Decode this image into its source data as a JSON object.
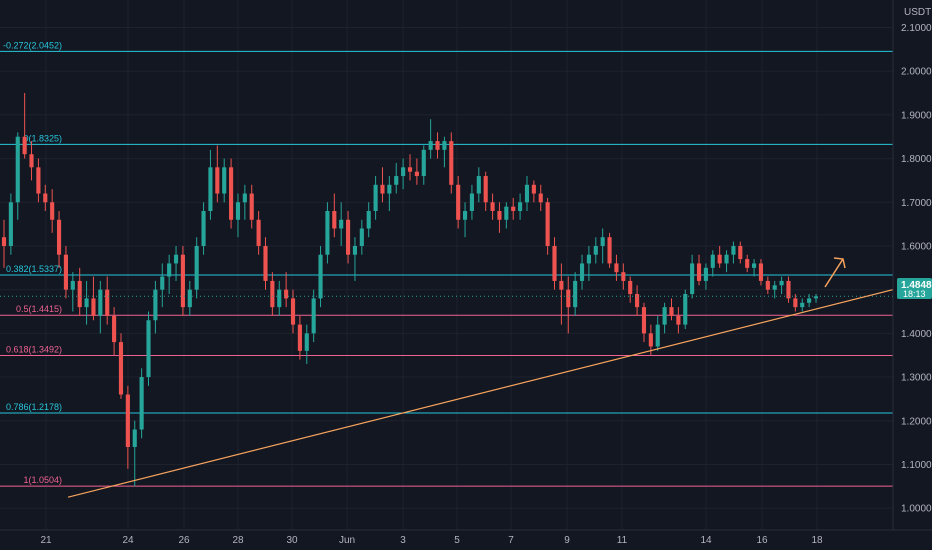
{
  "chart_data": {
    "type": "candlestick",
    "currency": "USDT",
    "y_range": [
      0.95,
      2.14
    ],
    "y_ticks": [
      "2.1000",
      "2.0000",
      "1.9000",
      "1.8000",
      "1.7000",
      "1.6000",
      "1.5000",
      "1.4000",
      "1.3000",
      "1.2000",
      "1.1000",
      "1.0000"
    ],
    "x_ticks": [
      "21",
      "24",
      "26",
      "28",
      "30",
      "Jun",
      "3",
      "5",
      "7",
      "9",
      "11",
      "14",
      "16",
      "18"
    ],
    "last_price": "1.4848",
    "countdown": "18:13",
    "fib_levels": [
      {
        "label": "-0.272(2.0452)",
        "price": 2.0452,
        "color": "#26c6da"
      },
      {
        "label": "0(1.8325)",
        "price": 1.8325,
        "color": "#26c6da"
      },
      {
        "label": "0.382(1.5337)",
        "price": 1.5337,
        "color": "#26c6da"
      },
      {
        "label": "0.5(1.4415)",
        "price": 1.4415,
        "color": "#f06292"
      },
      {
        "label": "0.618(1.3492)",
        "price": 1.3492,
        "color": "#f06292"
      },
      {
        "label": "0.786(1.2178)",
        "price": 1.2178,
        "color": "#26c6da"
      },
      {
        "label": "1(1.0504)",
        "price": 1.0504,
        "color": "#f06292"
      }
    ],
    "trendline": {
      "color": "#f7a35c",
      "from_price": 1.025,
      "to_price": 1.5
    },
    "candles": [
      [
        1.62,
        1.66,
        1.55,
        1.6
      ],
      [
        1.6,
        1.72,
        1.58,
        1.7
      ],
      [
        1.7,
        1.86,
        1.66,
        1.85
      ],
      [
        1.85,
        1.95,
        1.8,
        1.81
      ],
      [
        1.81,
        1.84,
        1.75,
        1.78
      ],
      [
        1.78,
        1.8,
        1.7,
        1.72
      ],
      [
        1.72,
        1.74,
        1.68,
        1.7
      ],
      [
        1.7,
        1.73,
        1.63,
        1.66
      ],
      [
        1.66,
        1.68,
        1.55,
        1.58
      ],
      [
        1.58,
        1.6,
        1.48,
        1.5
      ],
      [
        1.5,
        1.54,
        1.45,
        1.52
      ],
      [
        1.52,
        1.55,
        1.44,
        1.46
      ],
      [
        1.46,
        1.52,
        1.42,
        1.48
      ],
      [
        1.48,
        1.53,
        1.43,
        1.44
      ],
      [
        1.44,
        1.52,
        1.4,
        1.5
      ],
      [
        1.5,
        1.53,
        1.42,
        1.44
      ],
      [
        1.44,
        1.46,
        1.35,
        1.38
      ],
      [
        1.38,
        1.4,
        1.25,
        1.26
      ],
      [
        1.26,
        1.28,
        1.09,
        1.14
      ],
      [
        1.14,
        1.2,
        1.05,
        1.18
      ],
      [
        1.18,
        1.32,
        1.16,
        1.3
      ],
      [
        1.3,
        1.45,
        1.28,
        1.43
      ],
      [
        1.43,
        1.52,
        1.4,
        1.5
      ],
      [
        1.5,
        1.56,
        1.46,
        1.53
      ],
      [
        1.53,
        1.58,
        1.49,
        1.56
      ],
      [
        1.56,
        1.6,
        1.52,
        1.58
      ],
      [
        1.58,
        1.6,
        1.44,
        1.46
      ],
      [
        1.46,
        1.52,
        1.44,
        1.5
      ],
      [
        1.5,
        1.62,
        1.48,
        1.6
      ],
      [
        1.6,
        1.7,
        1.58,
        1.68
      ],
      [
        1.68,
        1.82,
        1.66,
        1.78
      ],
      [
        1.78,
        1.83,
        1.7,
        1.72
      ],
      [
        1.72,
        1.8,
        1.7,
        1.78
      ],
      [
        1.78,
        1.8,
        1.64,
        1.66
      ],
      [
        1.66,
        1.72,
        1.62,
        1.7
      ],
      [
        1.7,
        1.74,
        1.66,
        1.72
      ],
      [
        1.72,
        1.74,
        1.64,
        1.66
      ],
      [
        1.66,
        1.68,
        1.58,
        1.6
      ],
      [
        1.6,
        1.62,
        1.5,
        1.52
      ],
      [
        1.52,
        1.54,
        1.44,
        1.46
      ],
      [
        1.46,
        1.52,
        1.44,
        1.5
      ],
      [
        1.5,
        1.54,
        1.46,
        1.48
      ],
      [
        1.48,
        1.5,
        1.4,
        1.42
      ],
      [
        1.42,
        1.44,
        1.34,
        1.36
      ],
      [
        1.36,
        1.42,
        1.33,
        1.4
      ],
      [
        1.4,
        1.5,
        1.38,
        1.48
      ],
      [
        1.48,
        1.6,
        1.46,
        1.58
      ],
      [
        1.58,
        1.7,
        1.56,
        1.68
      ],
      [
        1.68,
        1.72,
        1.62,
        1.64
      ],
      [
        1.64,
        1.7,
        1.6,
        1.66
      ],
      [
        1.66,
        1.68,
        1.56,
        1.58
      ],
      [
        1.58,
        1.62,
        1.52,
        1.6
      ],
      [
        1.6,
        1.66,
        1.58,
        1.64
      ],
      [
        1.64,
        1.7,
        1.62,
        1.68
      ],
      [
        1.68,
        1.76,
        1.66,
        1.74
      ],
      [
        1.74,
        1.78,
        1.7,
        1.72
      ],
      [
        1.72,
        1.76,
        1.68,
        1.74
      ],
      [
        1.74,
        1.79,
        1.72,
        1.76
      ],
      [
        1.76,
        1.8,
        1.73,
        1.78
      ],
      [
        1.78,
        1.81,
        1.75,
        1.77
      ],
      [
        1.77,
        1.8,
        1.74,
        1.76
      ],
      [
        1.76,
        1.83,
        1.74,
        1.82
      ],
      [
        1.82,
        1.89,
        1.8,
        1.84
      ],
      [
        1.84,
        1.86,
        1.8,
        1.82
      ],
      [
        1.82,
        1.85,
        1.78,
        1.84
      ],
      [
        1.84,
        1.86,
        1.72,
        1.74
      ],
      [
        1.74,
        1.76,
        1.64,
        1.66
      ],
      [
        1.66,
        1.7,
        1.62,
        1.68
      ],
      [
        1.68,
        1.74,
        1.66,
        1.72
      ],
      [
        1.72,
        1.78,
        1.7,
        1.76
      ],
      [
        1.76,
        1.77,
        1.68,
        1.7
      ],
      [
        1.7,
        1.72,
        1.66,
        1.68
      ],
      [
        1.68,
        1.7,
        1.63,
        1.66
      ],
      [
        1.66,
        1.7,
        1.64,
        1.69
      ],
      [
        1.69,
        1.71,
        1.66,
        1.68
      ],
      [
        1.68,
        1.72,
        1.66,
        1.7
      ],
      [
        1.7,
        1.76,
        1.68,
        1.74
      ],
      [
        1.74,
        1.75,
        1.7,
        1.72
      ],
      [
        1.72,
        1.74,
        1.68,
        1.7
      ],
      [
        1.7,
        1.71,
        1.58,
        1.6
      ],
      [
        1.6,
        1.62,
        1.5,
        1.52
      ],
      [
        1.52,
        1.56,
        1.42,
        1.5
      ],
      [
        1.5,
        1.53,
        1.4,
        1.46
      ],
      [
        1.46,
        1.54,
        1.44,
        1.52
      ],
      [
        1.52,
        1.58,
        1.5,
        1.56
      ],
      [
        1.56,
        1.6,
        1.52,
        1.58
      ],
      [
        1.58,
        1.62,
        1.56,
        1.6
      ],
      [
        1.6,
        1.64,
        1.56,
        1.62
      ],
      [
        1.62,
        1.63,
        1.55,
        1.56
      ],
      [
        1.56,
        1.58,
        1.52,
        1.54
      ],
      [
        1.54,
        1.56,
        1.5,
        1.52
      ],
      [
        1.52,
        1.53,
        1.47,
        1.49
      ],
      [
        1.49,
        1.51,
        1.44,
        1.46
      ],
      [
        1.46,
        1.47,
        1.38,
        1.4
      ],
      [
        1.4,
        1.42,
        1.35,
        1.37
      ],
      [
        1.37,
        1.44,
        1.36,
        1.42
      ],
      [
        1.42,
        1.47,
        1.4,
        1.46
      ],
      [
        1.46,
        1.48,
        1.43,
        1.44
      ],
      [
        1.44,
        1.46,
        1.4,
        1.42
      ],
      [
        1.42,
        1.5,
        1.41,
        1.49
      ],
      [
        1.49,
        1.58,
        1.48,
        1.56
      ],
      [
        1.56,
        1.58,
        1.51,
        1.52
      ],
      [
        1.52,
        1.56,
        1.5,
        1.55
      ],
      [
        1.55,
        1.59,
        1.53,
        1.58
      ],
      [
        1.58,
        1.6,
        1.55,
        1.56
      ],
      [
        1.56,
        1.59,
        1.54,
        1.58
      ],
      [
        1.58,
        1.61,
        1.56,
        1.6
      ],
      [
        1.6,
        1.61,
        1.56,
        1.57
      ],
      [
        1.57,
        1.58,
        1.54,
        1.55
      ],
      [
        1.55,
        1.57,
        1.53,
        1.56
      ],
      [
        1.56,
        1.57,
        1.51,
        1.52
      ],
      [
        1.52,
        1.53,
        1.49,
        1.5
      ],
      [
        1.5,
        1.52,
        1.48,
        1.51
      ],
      [
        1.51,
        1.53,
        1.49,
        1.52
      ],
      [
        1.52,
        1.53,
        1.47,
        1.48
      ],
      [
        1.48,
        1.49,
        1.45,
        1.46
      ],
      [
        1.46,
        1.48,
        1.45,
        1.47
      ],
      [
        1.47,
        1.49,
        1.46,
        1.48
      ],
      [
        1.48,
        1.49,
        1.47,
        1.4848
      ]
    ]
  }
}
